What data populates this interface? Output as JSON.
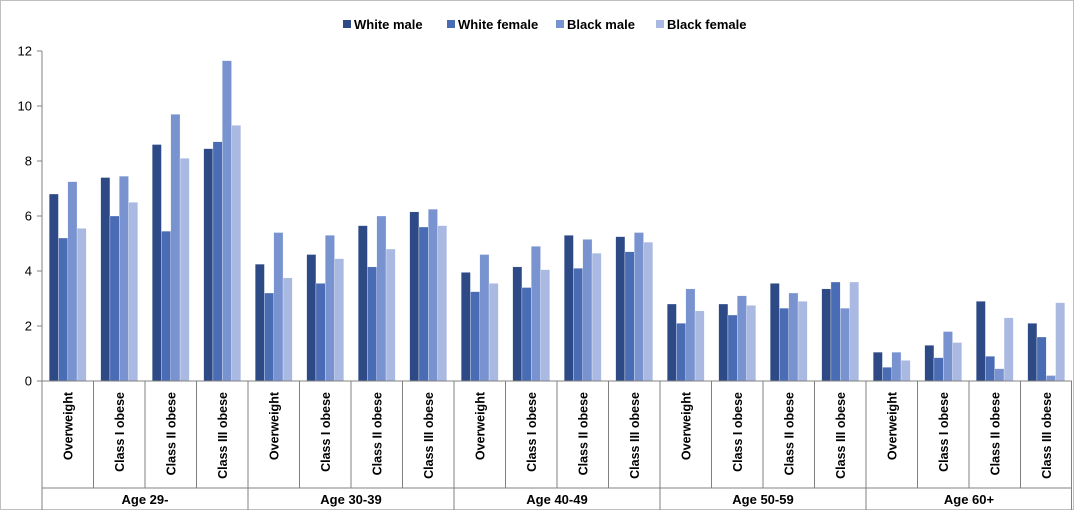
{
  "chart_data": {
    "type": "bar",
    "title": "",
    "xlabel": "",
    "ylabel": "",
    "ylim": [
      0,
      12
    ],
    "yticks": [
      0,
      2,
      4,
      6,
      8,
      10,
      12
    ],
    "grid": false,
    "legend_position": "top-center",
    "groups": [
      {
        "label": "Age 29-",
        "categories": [
          "Overweight",
          "Class I obese",
          "Class II obese",
          "Class III obese"
        ]
      },
      {
        "label": "Age 30-39",
        "categories": [
          "Overweight",
          "Class I obese",
          "Class II obese",
          "Class III obese"
        ]
      },
      {
        "label": "Age 40-49",
        "categories": [
          "Overweight",
          "Class I obese",
          "Class II obese",
          "Class III obese"
        ]
      },
      {
        "label": "Age 50-59",
        "categories": [
          "Overweight",
          "Class I obese",
          "Class II obese",
          "Class III obese"
        ]
      },
      {
        "label": "Age 60+",
        "categories": [
          "Overweight",
          "Class I obese",
          "Class II obese",
          "Class III obese"
        ]
      }
    ],
    "series": [
      {
        "name": "White male",
        "color": "#2e4a86",
        "values": [
          6.8,
          7.4,
          8.6,
          8.45,
          4.25,
          4.6,
          5.65,
          6.15,
          3.95,
          4.15,
          5.3,
          5.25,
          2.8,
          2.8,
          3.55,
          3.35,
          1.05,
          1.3,
          2.9,
          2.1
        ]
      },
      {
        "name": "White female",
        "color": "#4a6cb5",
        "values": [
          5.2,
          6.0,
          5.45,
          8.7,
          3.2,
          3.55,
          4.15,
          5.6,
          3.25,
          3.4,
          4.1,
          4.7,
          2.1,
          2.4,
          2.65,
          3.6,
          0.5,
          0.85,
          0.9,
          1.6
        ]
      },
      {
        "name": "Black male",
        "color": "#7893d0",
        "values": [
          7.25,
          7.45,
          9.7,
          11.65,
          5.4,
          5.3,
          6.0,
          6.25,
          4.6,
          4.9,
          5.15,
          5.4,
          3.35,
          3.1,
          3.2,
          2.65,
          1.05,
          1.8,
          0.45,
          0.2
        ]
      },
      {
        "name": "Black female",
        "color": "#aab9e2",
        "values": [
          5.55,
          6.5,
          8.1,
          9.3,
          3.75,
          4.45,
          4.8,
          5.65,
          3.55,
          4.05,
          4.65,
          5.05,
          2.55,
          2.75,
          2.9,
          3.6,
          0.75,
          1.4,
          2.3,
          2.85
        ]
      }
    ]
  }
}
